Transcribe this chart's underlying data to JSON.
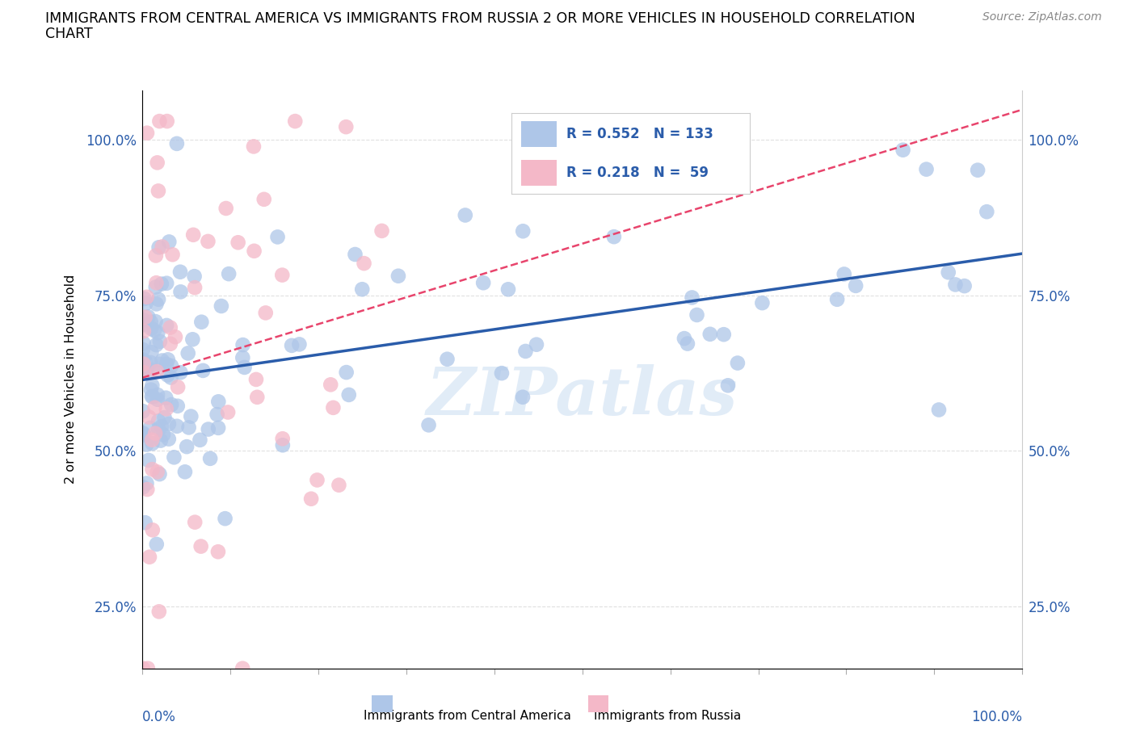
{
  "title_line1": "IMMIGRANTS FROM CENTRAL AMERICA VS IMMIGRANTS FROM RUSSIA 2 OR MORE VEHICLES IN HOUSEHOLD CORRELATION",
  "title_line2": "CHART",
  "source": "Source: ZipAtlas.com",
  "ylabel": "2 or more Vehicles in Household",
  "watermark": "ZIPatlas",
  "blue_color": "#aec6e8",
  "blue_line_color": "#2a5caa",
  "pink_color": "#f4b8c8",
  "pink_line_color": "#e8446c",
  "legend_R_blue": "R = 0.552",
  "legend_N_blue": "N = 133",
  "legend_R_pink": "R = 0.218",
  "legend_N_pink": "N =  59",
  "legend_color": "#2a5caa",
  "xlim": [
    0,
    100
  ],
  "ylim": [
    15,
    108
  ],
  "yticks": [
    25,
    50,
    75,
    100
  ],
  "ytick_labels": [
    "25.0%",
    "50.0%",
    "75.0%",
    "100.0%"
  ],
  "background_color": "#ffffff",
  "grid_color": "#e0e0e0",
  "blue_seed": 12,
  "pink_seed": 7
}
